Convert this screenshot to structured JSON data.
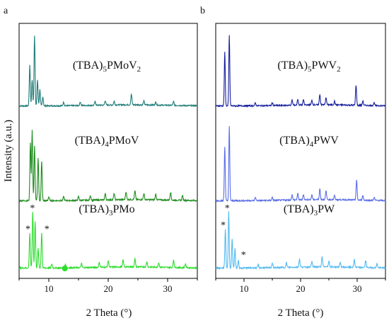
{
  "panels": [
    {
      "letter": "a",
      "xlabel": "2 Theta (°)",
      "ylabel": "Intensity (a.u.)",
      "xlim": [
        5,
        35
      ],
      "ticks": [
        10,
        20,
        30
      ],
      "tick_labels": [
        "10",
        "20",
        "30"
      ]
    },
    {
      "letter": "b",
      "xlabel": "2 Theta (°)",
      "xlim": [
        5,
        35
      ],
      "ticks": [
        10,
        20,
        30
      ],
      "tick_labels": [
        "10",
        "20",
        "30"
      ]
    }
  ],
  "chart_data": [
    {
      "type": "line",
      "panel": "a",
      "xlabel": "2 Theta (°)",
      "ylabel": "Intensity (a.u.)",
      "xlim": [
        5,
        35
      ],
      "grid": false,
      "series": [
        {
          "name": "(TBA)5PMoV2",
          "label": {
            "base": "(TBA)",
            "s1": "5",
            "mid": "PMoV",
            "s2": "2"
          },
          "color": "#1e7c78",
          "offset": 2.0,
          "peaks": [
            [
              6.8,
              0.55
            ],
            [
              7.2,
              0.35
            ],
            [
              7.6,
              0.95
            ],
            [
              8.1,
              0.35
            ],
            [
              8.5,
              0.22
            ],
            [
              9.0,
              0.12
            ],
            [
              12.5,
              0.05
            ],
            [
              15.3,
              0.05
            ],
            [
              17.8,
              0.05
            ],
            [
              19.5,
              0.06
            ],
            [
              21.0,
              0.05
            ],
            [
              23.9,
              0.14
            ],
            [
              26.0,
              0.05
            ],
            [
              28.0,
              0.04
            ],
            [
              31.0,
              0.05
            ]
          ]
        },
        {
          "name": "(TBA)4PMoV",
          "label": {
            "base": "(TBA)",
            "s1": "4",
            "mid": "PMoV",
            "s2": ""
          },
          "color": "#1e8c1e",
          "offset": 1.0,
          "peaks": [
            [
              6.9,
              0.75
            ],
            [
              7.2,
              0.9
            ],
            [
              7.6,
              0.7
            ],
            [
              8.2,
              0.55
            ],
            [
              8.8,
              0.5
            ],
            [
              10.0,
              0.05
            ],
            [
              12.5,
              0.05
            ],
            [
              15.0,
              0.05
            ],
            [
              17.0,
              0.06
            ],
            [
              19.5,
              0.08
            ],
            [
              21.0,
              0.08
            ],
            [
              23.0,
              0.1
            ],
            [
              24.5,
              0.11
            ],
            [
              26.0,
              0.08
            ],
            [
              28.0,
              0.07
            ],
            [
              30.5,
              0.1
            ],
            [
              32.5,
              0.06
            ]
          ]
        },
        {
          "name": "(TBA)3PMo",
          "label": {
            "base": "(TBA)",
            "s1": "3",
            "mid": "PMo",
            "s2": ""
          },
          "color": "#2bdc2b",
          "offset": 0.0,
          "peaks": [
            [
              6.8,
              0.45
            ],
            [
              7.3,
              0.72
            ],
            [
              7.7,
              0.6
            ],
            [
              8.2,
              0.25
            ],
            [
              8.8,
              0.45
            ],
            [
              10.5,
              0.05
            ],
            [
              12.8,
              0.04
            ],
            [
              15.5,
              0.05
            ],
            [
              18.5,
              0.06
            ],
            [
              20.0,
              0.08
            ],
            [
              22.5,
              0.09
            ],
            [
              24.5,
              0.1
            ],
            [
              26.5,
              0.07
            ],
            [
              28.5,
              0.06
            ],
            [
              31.0,
              0.09
            ],
            [
              33.0,
              0.05
            ]
          ]
        }
      ]
    },
    {
      "type": "line",
      "panel": "b",
      "xlabel": "2 Theta (°)",
      "xlim": [
        5,
        35
      ],
      "grid": false,
      "series": [
        {
          "name": "(TBA)5PWV2",
          "label": {
            "base": "(TBA)",
            "s1": "5",
            "mid": "PWV",
            "s2": "2"
          },
          "color": "#17209e",
          "offset": 2.0,
          "peaks": [
            [
              6.6,
              0.72
            ],
            [
              7.4,
              0.95
            ],
            [
              12.0,
              0.04
            ],
            [
              15.0,
              0.04
            ],
            [
              18.5,
              0.07
            ],
            [
              19.5,
              0.08
            ],
            [
              20.5,
              0.07
            ],
            [
              22.0,
              0.06
            ],
            [
              23.4,
              0.14
            ],
            [
              24.5,
              0.1
            ],
            [
              26.0,
              0.05
            ],
            [
              29.8,
              0.27
            ],
            [
              31.0,
              0.06
            ],
            [
              33.0,
              0.04
            ]
          ]
        },
        {
          "name": "(TBA)4PWV",
          "label": {
            "base": "(TBA)",
            "s1": "4",
            "mid": "PWV",
            "s2": ""
          },
          "color": "#5a6ee6",
          "offset": 1.0,
          "peaks": [
            [
              6.6,
              0.7
            ],
            [
              7.4,
              0.95
            ],
            [
              12.0,
              0.04
            ],
            [
              15.0,
              0.04
            ],
            [
              18.5,
              0.07
            ],
            [
              19.5,
              0.08
            ],
            [
              20.5,
              0.07
            ],
            [
              22.0,
              0.06
            ],
            [
              23.4,
              0.14
            ],
            [
              24.5,
              0.11
            ],
            [
              26.0,
              0.05
            ],
            [
              29.9,
              0.25
            ],
            [
              31.0,
              0.06
            ],
            [
              33.0,
              0.04
            ]
          ]
        },
        {
          "name": "(TBA)3PW",
          "label": {
            "base": "(TBA)",
            "s1": "3",
            "mid": "PW",
            "s2": ""
          },
          "color": "#55baf0",
          "offset": 0.0,
          "peaks": [
            [
              6.7,
              0.5
            ],
            [
              7.3,
              0.72
            ],
            [
              7.9,
              0.38
            ],
            [
              8.4,
              0.25
            ],
            [
              9.0,
              0.1
            ],
            [
              12.5,
              0.04
            ],
            [
              15.0,
              0.06
            ],
            [
              17.5,
              0.06
            ],
            [
              19.8,
              0.1
            ],
            [
              22.0,
              0.07
            ],
            [
              23.8,
              0.13
            ],
            [
              25.0,
              0.08
            ],
            [
              27.0,
              0.06
            ],
            [
              29.5,
              0.1
            ],
            [
              31.5,
              0.09
            ],
            [
              33.5,
              0.05
            ]
          ]
        }
      ]
    }
  ],
  "annotations": {
    "marker_symbol": "*",
    "marker_color": "#e8262b",
    "dot_color": "#2bdc2b",
    "panel_a_stars": [
      [
        6.85,
        0.45
      ],
      [
        7.6,
        0.72
      ],
      [
        9.2,
        0.45
      ]
    ],
    "panel_b_stars": [
      [
        6.7,
        0.5
      ],
      [
        7.4,
        0.72
      ],
      [
        9.4,
        0.12
      ]
    ],
    "panel_a_dot": [
      12.7,
      0.0
    ]
  }
}
